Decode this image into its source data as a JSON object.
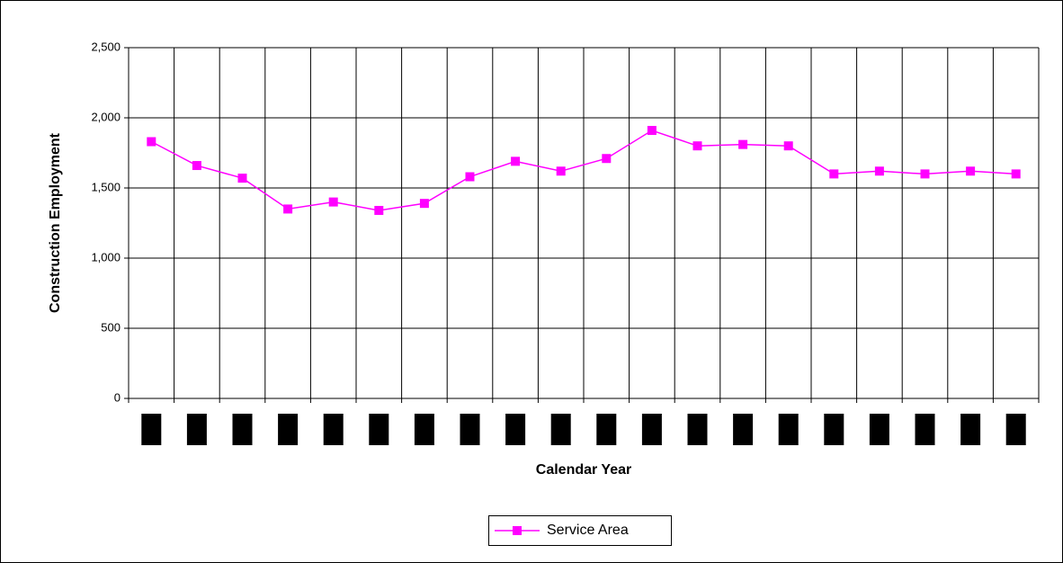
{
  "chart_data": {
    "type": "line",
    "y_label": "Construction Employment",
    "x_label": "Calendar Year",
    "categories": [
      null,
      null,
      null,
      null,
      null,
      null,
      null,
      null,
      null,
      null,
      null,
      null,
      null,
      null,
      null,
      null,
      null,
      null,
      null,
      null
    ],
    "series": [
      {
        "name": "Service Area",
        "color": "#ff00ff",
        "values": [
          1830,
          1660,
          1570,
          1350,
          1400,
          1340,
          1390,
          1580,
          1690,
          1620,
          1710,
          1910,
          1800,
          1810,
          1800,
          1600,
          1620,
          1600,
          1620,
          1600
        ]
      }
    ],
    "ylim": [
      0,
      2500
    ],
    "yticks": [
      0,
      500,
      {
        "value": 1000,
        "label": "1,000"
      },
      {
        "value": 1500,
        "label": "1,500"
      },
      {
        "value": 2000,
        "label": "2,000"
      },
      {
        "value": 2500,
        "label": "2,500"
      }
    ],
    "grid": true,
    "legend": "bottom"
  }
}
